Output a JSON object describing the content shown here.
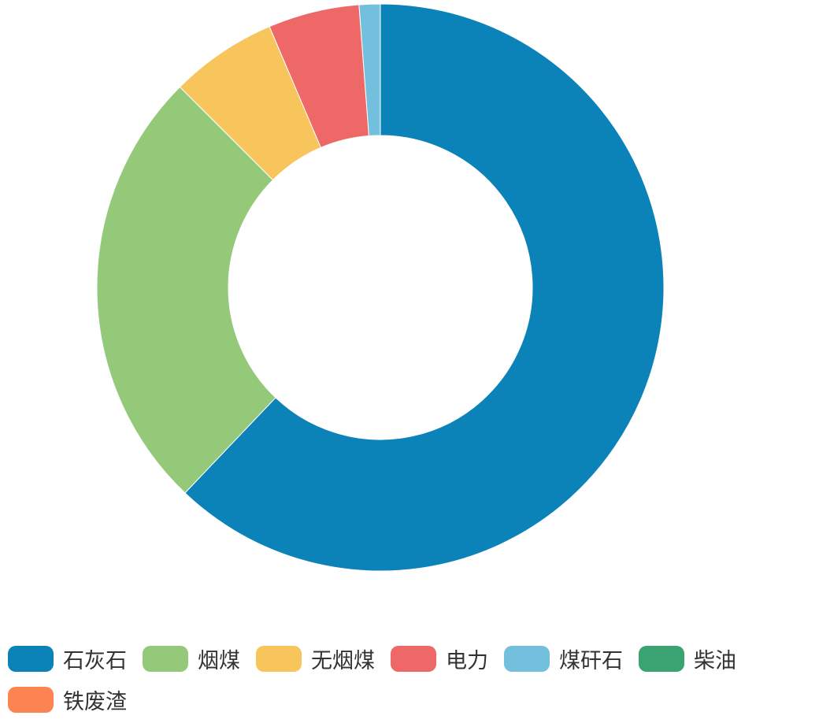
{
  "chart_data": {
    "type": "pie",
    "variant": "donut",
    "title": "",
    "categories": [
      "石灰石",
      "烟煤",
      "无烟煤",
      "电力",
      "煤矸石",
      "柴油",
      "铁废渣"
    ],
    "values": [
      62.1,
      25.4,
      6.1,
      5.2,
      1.2,
      0.0,
      0.0
    ],
    "colors": [
      "#0b82b8",
      "#93c978",
      "#f7c55c",
      "#ee6868",
      "#73c0de",
      "#3ba272",
      "#fc8452"
    ],
    "legend_position": "bottom-left"
  }
}
